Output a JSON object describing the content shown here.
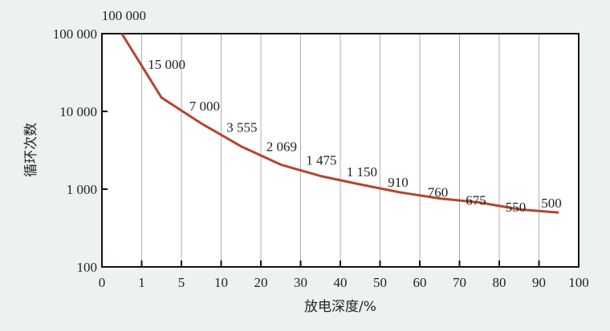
{
  "chart_data": {
    "type": "line",
    "title": "",
    "xlabel": "放电深度/%",
    "ylabel": "循环次数",
    "x_ticks": [
      "0",
      "1",
      "5",
      "10",
      "20",
      "30",
      "40",
      "50",
      "60",
      "70",
      "80",
      "90",
      "100"
    ],
    "y_ticks": [
      "100",
      "1 000",
      "10 000",
      "100 000"
    ],
    "y_scale": "log",
    "ylim": [
      100,
      100000
    ],
    "grid": "vertical",
    "line_color": "#b5452f",
    "series": [
      {
        "x_interval": [
          "0-1",
          "1-5",
          "5-10",
          "10-20",
          "20-30",
          "30-40",
          "40-50",
          "50-60",
          "60-70",
          "70-80",
          "80-90",
          "90-100"
        ],
        "values": [
          100000,
          15000,
          7000,
          3555,
          2069,
          1475,
          1150,
          910,
          760,
          675,
          550,
          500
        ],
        "labels": [
          "100 000",
          "15 000",
          "7 000",
          "3 555",
          "2 069",
          "1 475",
          "1 150",
          "910",
          "760",
          "675",
          "550",
          "500"
        ]
      }
    ]
  }
}
